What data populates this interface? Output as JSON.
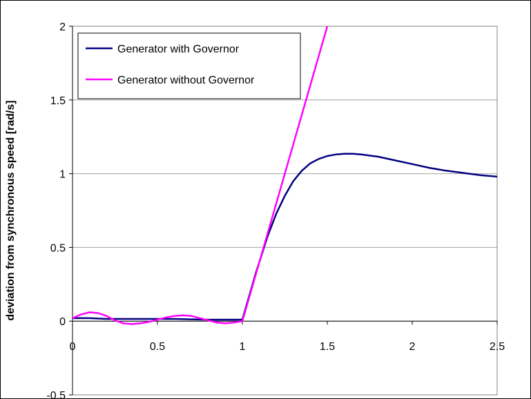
{
  "chart_data": {
    "type": "line",
    "title": "",
    "xlabel": "",
    "ylabel": "deviation from synchronous speed [rad/s]",
    "xlim": [
      0,
      2.5
    ],
    "ylim": [
      -0.5,
      2
    ],
    "xticks": [
      "0",
      "0.5",
      "1",
      "1.5",
      "2",
      "2.5"
    ],
    "yticks": [
      "-0.5",
      "0",
      "0.5",
      "1",
      "1.5",
      "2"
    ],
    "grid": "horizontal",
    "legend_position": "top-left",
    "series": [
      {
        "name": "Generator with Governor",
        "color": "#000080",
        "x": [
          0,
          0.1,
          0.2,
          0.3,
          0.4,
          0.5,
          0.6,
          0.7,
          0.8,
          0.9,
          1.0,
          1.02,
          1.05,
          1.08,
          1.1,
          1.15,
          1.2,
          1.25,
          1.3,
          1.35,
          1.4,
          1.45,
          1.5,
          1.55,
          1.6,
          1.65,
          1.7,
          1.8,
          1.9,
          2.0,
          2.1,
          2.2,
          2.3,
          2.4,
          2.5
        ],
        "y": [
          0.02,
          0.02,
          0.015,
          0.015,
          0.015,
          0.015,
          0.015,
          0.012,
          0.01,
          0.01,
          0.01,
          0.09,
          0.21,
          0.33,
          0.4,
          0.58,
          0.73,
          0.85,
          0.95,
          1.02,
          1.07,
          1.1,
          1.12,
          1.13,
          1.135,
          1.135,
          1.13,
          1.115,
          1.09,
          1.065,
          1.04,
          1.02,
          1.005,
          0.99,
          0.98
        ]
      },
      {
        "name": "Generator without Governor",
        "color": "#ff00ff",
        "x": [
          0,
          0.05,
          0.1,
          0.15,
          0.2,
          0.25,
          0.3,
          0.35,
          0.4,
          0.45,
          0.5,
          0.55,
          0.6,
          0.65,
          0.7,
          0.75,
          0.8,
          0.85,
          0.9,
          0.95,
          1.0,
          1.5
        ],
        "y": [
          0.02,
          0.045,
          0.06,
          0.055,
          0.035,
          0.005,
          -0.015,
          -0.02,
          -0.015,
          -0.005,
          0.01,
          0.025,
          0.035,
          0.04,
          0.035,
          0.02,
          0.005,
          -0.01,
          -0.015,
          -0.01,
          0.0,
          2.0
        ]
      }
    ]
  }
}
